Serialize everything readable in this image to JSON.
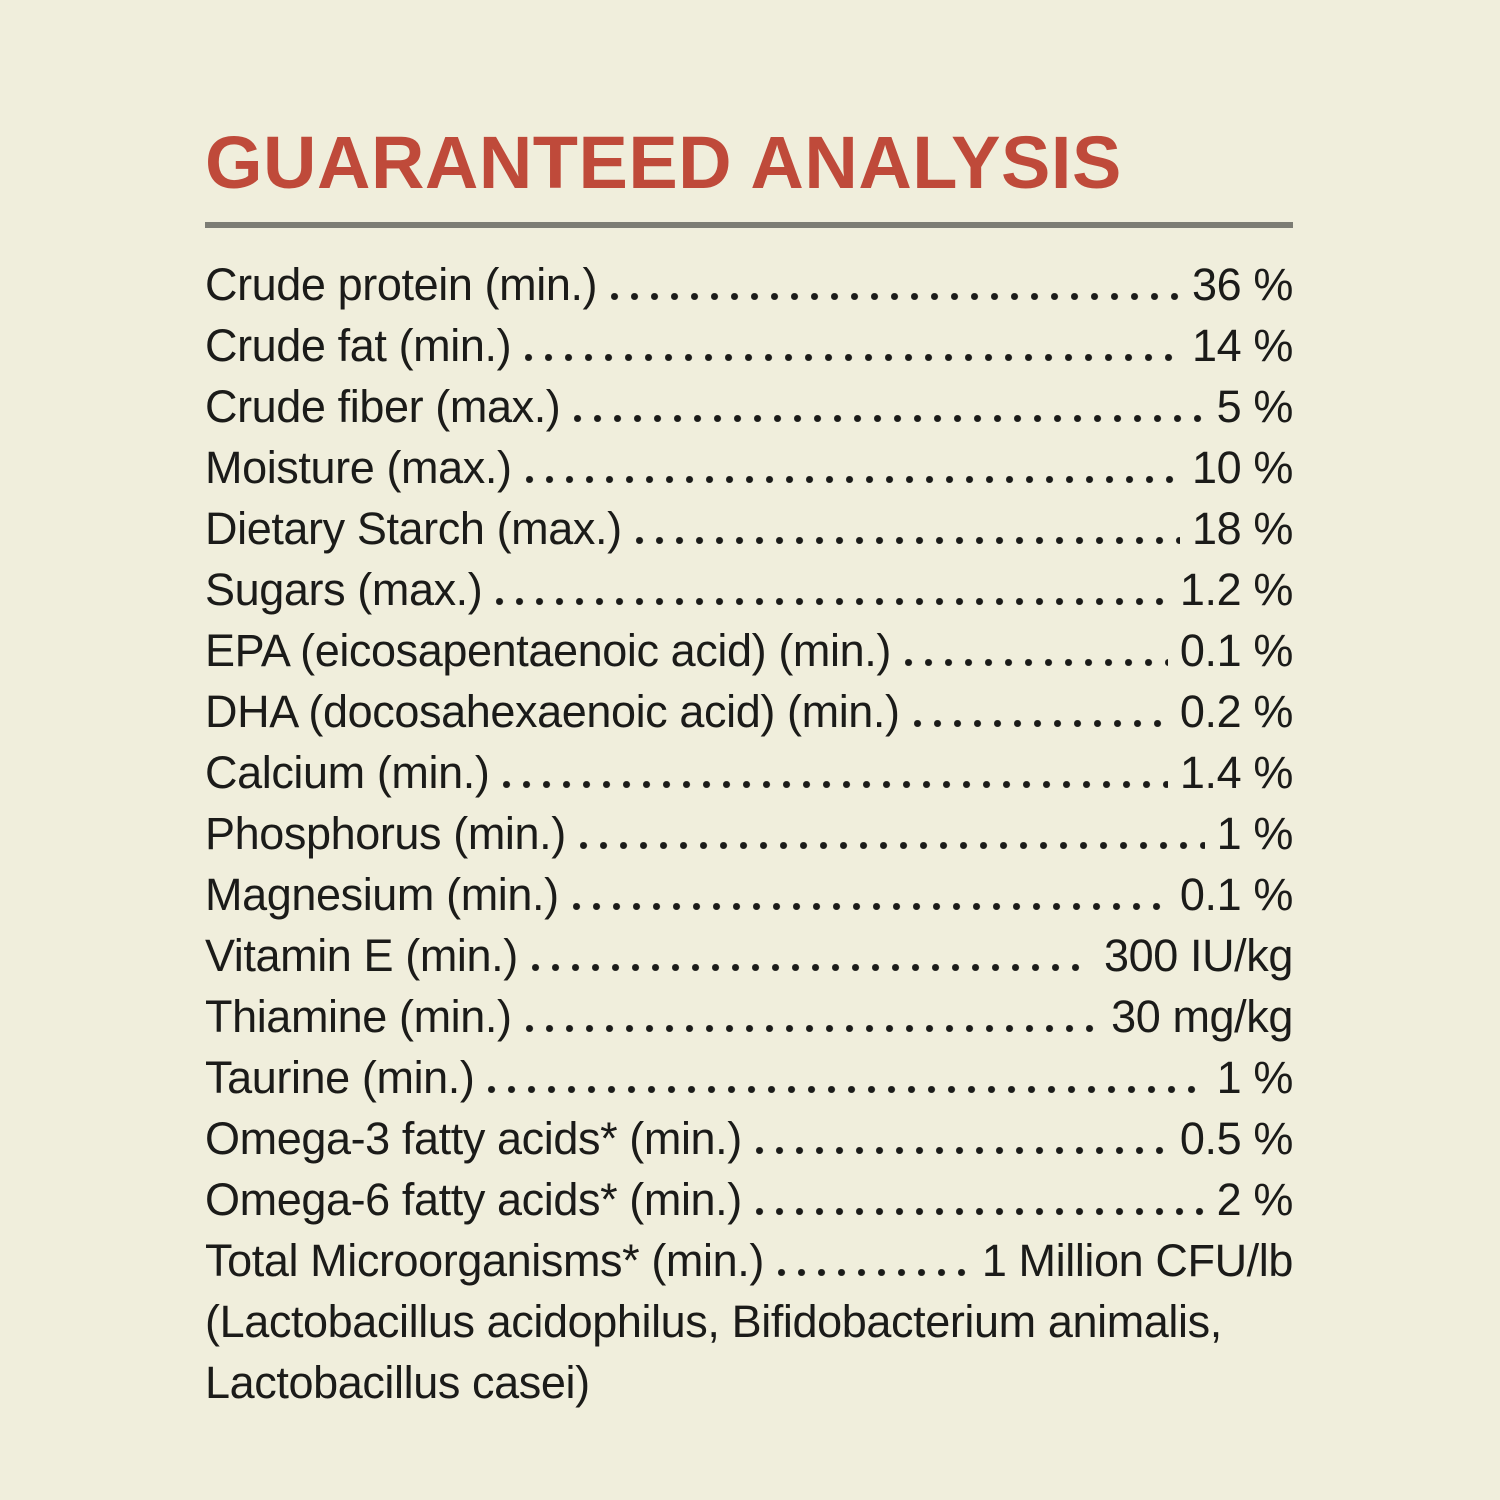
{
  "theme": {
    "background": "#f0eedc",
    "ink": "#1b1b19",
    "accent": "#bf4a3a",
    "rule": "#7c7c74"
  },
  "header": {
    "title": "GUARANTEED ANALYSIS"
  },
  "analysis": {
    "rows": [
      {
        "label": "Crude protein (min.)",
        "value": "36 %"
      },
      {
        "label": "Crude fat (min.)",
        "value": "14 %"
      },
      {
        "label": "Crude fiber (max.)",
        "value": "5 %"
      },
      {
        "label": "Moisture (max.)",
        "value": "10 %"
      },
      {
        "label": "Dietary Starch (max.)",
        "value": "18 %"
      },
      {
        "label": "Sugars (max.)",
        "value": "1.2 %"
      },
      {
        "label": "EPA (eicosapentaenoic acid) (min.)",
        "value": "0.1 %"
      },
      {
        "label": "DHA (docosahexaenoic acid) (min.)",
        "value": "0.2 %"
      },
      {
        "label": "Calcium (min.)",
        "value": "1.4 %"
      },
      {
        "label": "Phosphorus (min.)",
        "value": "1 %"
      },
      {
        "label": "Magnesium (min.)",
        "value": "0.1 %"
      },
      {
        "label": "Vitamin E (min.)",
        "value": "300 IU/kg"
      },
      {
        "label": "Thiamine (min.)",
        "value": "30 mg/kg"
      },
      {
        "label": "Taurine (min.)",
        "value": "1 %"
      },
      {
        "label": "Omega-3 fatty acids* (min.)",
        "value": "0.5 %"
      },
      {
        "label": "Omega-6 fatty acids* (min.)",
        "value": "2 %"
      },
      {
        "label": "Total Microorganisms* (min.)",
        "value": "1 Million CFU/lb"
      }
    ],
    "footnote": "(Lactobacillus acidophilus, Bifidobacterium animalis, Lactobacillus casei)"
  }
}
